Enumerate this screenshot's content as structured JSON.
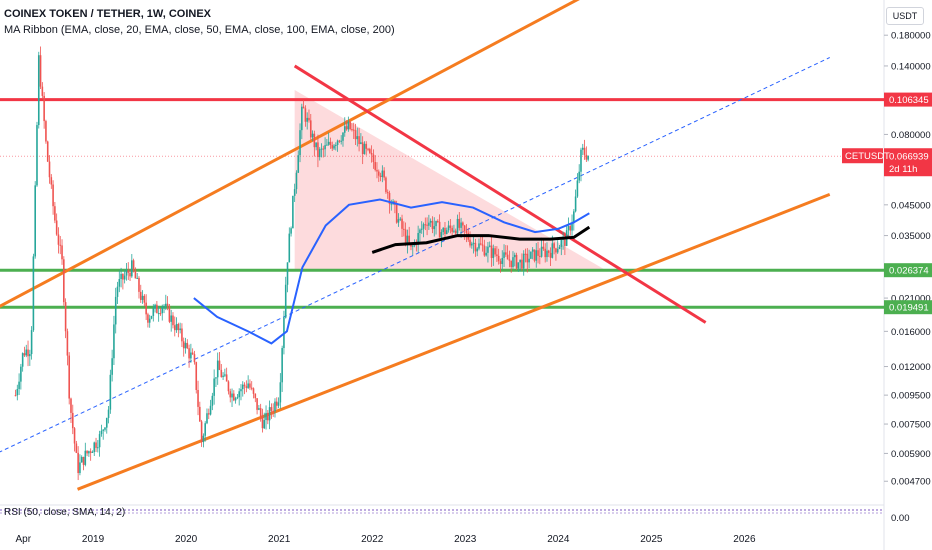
{
  "header": {
    "title": "COINEX TOKEN / TETHER, 1W, COINEX",
    "subtitle": "MA Ribbon (EMA, close, 20, EMA, close, 50, EMA, close, 100, EMA, close, 200)",
    "currency": "USDT"
  },
  "chart_data": {
    "type": "candlestick",
    "symbol": "CETUSDT",
    "timeframe": "1W",
    "scale": "log",
    "ylim": [
      0.0042,
      0.24
    ],
    "y_ticks": [
      "0.180000",
      "0.140000",
      "0.080000",
      "0.045000",
      "0.035000",
      "0.021000",
      "0.016000",
      "0.012000",
      "0.009500",
      "0.007500",
      "0.005900",
      "0.004700"
    ],
    "x_ticks": [
      "Apr",
      "2019",
      "2020",
      "2021",
      "2022",
      "2023",
      "2024",
      "2025",
      "2026"
    ],
    "last_price": {
      "label": "CETUSDT",
      "value": "0.066939",
      "countdown": "2d 11h",
      "color": "#f23645"
    },
    "price_path": [
      [
        "2018-03",
        0.0095
      ],
      [
        "2018-04",
        0.0135
      ],
      [
        "2018-05",
        0.014
      ],
      [
        "2018-06",
        0.148
      ],
      [
        "2018-07",
        0.07
      ],
      [
        "2018-08",
        0.041
      ],
      [
        "2018-09",
        0.028
      ],
      [
        "2018-10",
        0.009
      ],
      [
        "2018-11",
        0.0052
      ],
      [
        "2018-12",
        0.0058
      ],
      [
        "2019-02",
        0.0068
      ],
      [
        "2019-03",
        0.0085
      ],
      [
        "2019-04",
        0.023
      ],
      [
        "2019-06",
        0.027
      ],
      [
        "2019-08",
        0.018
      ],
      [
        "2019-10",
        0.02
      ],
      [
        "2019-12",
        0.016
      ],
      [
        "2020-01",
        0.014
      ],
      [
        "2020-02",
        0.0125
      ],
      [
        "2020-03",
        0.0065
      ],
      [
        "2020-05",
        0.012
      ],
      [
        "2020-07",
        0.0095
      ],
      [
        "2020-09",
        0.0105
      ],
      [
        "2020-11",
        0.0075
      ],
      [
        "2021-01",
        0.0095
      ],
      [
        "2021-02",
        0.028
      ],
      [
        "2021-04",
        0.1
      ],
      [
        "2021-06",
        0.068
      ],
      [
        "2021-08",
        0.075
      ],
      [
        "2021-10",
        0.085
      ],
      [
        "2021-12",
        0.07
      ],
      [
        "2022-02",
        0.06
      ],
      [
        "2022-04",
        0.042
      ],
      [
        "2022-06",
        0.031
      ],
      [
        "2022-08",
        0.04
      ],
      [
        "2022-10",
        0.036
      ],
      [
        "2022-12",
        0.038
      ],
      [
        "2023-02",
        0.033
      ],
      [
        "2023-04",
        0.031
      ],
      [
        "2023-06",
        0.029
      ],
      [
        "2023-08",
        0.028
      ],
      [
        "2023-10",
        0.03
      ],
      [
        "2023-12",
        0.031
      ],
      [
        "2024-02",
        0.034
      ],
      [
        "2024-03",
        0.042
      ],
      [
        "2024-04",
        0.07
      ],
      [
        "2024-05",
        0.066939
      ]
    ],
    "horizontal_levels": [
      {
        "value": "0.106345",
        "color": "#f23645"
      },
      {
        "value": "0.026374",
        "color": "#4caf50"
      },
      {
        "value": "0.019491",
        "color": "#4caf50"
      }
    ],
    "indicators": {
      "ema_blue": [
        [
          "2020-02",
          0.021
        ],
        [
          "2020-05",
          0.018
        ],
        [
          "2020-09",
          0.016
        ],
        [
          "2020-12",
          0.0145
        ],
        [
          "2021-02",
          0.016
        ],
        [
          "2021-04",
          0.027
        ],
        [
          "2021-07",
          0.038
        ],
        [
          "2021-10",
          0.045
        ],
        [
          "2022-02",
          0.047
        ],
        [
          "2022-06",
          0.044
        ],
        [
          "2022-10",
          0.046
        ],
        [
          "2023-02",
          0.044
        ],
        [
          "2023-06",
          0.039
        ],
        [
          "2023-10",
          0.036
        ],
        [
          "2024-01",
          0.037
        ],
        [
          "2024-03",
          0.039
        ],
        [
          "2024-05",
          0.042
        ]
      ],
      "ema_black": [
        [
          "2022-01",
          0.0305
        ],
        [
          "2022-04",
          0.0325
        ],
        [
          "2022-08",
          0.033
        ],
        [
          "2022-12",
          0.035
        ],
        [
          "2023-04",
          0.035
        ],
        [
          "2023-08",
          0.034
        ],
        [
          "2023-12",
          0.034
        ],
        [
          "2024-03",
          0.0345
        ],
        [
          "2024-05",
          0.0375
        ]
      ]
    },
    "trendlines": [
      {
        "color": "#f57c20",
        "from": [
          "2017-12",
          0.019
        ],
        "to": [
          "2024-10",
          0.3
        ]
      },
      {
        "color": "#f57c20",
        "from": [
          "2018-11",
          0.0044
        ],
        "to": [
          "2026-12",
          0.049
        ]
      },
      {
        "color": "#f23645",
        "from": [
          "2021-03",
          0.14
        ],
        "to": [
          "2025-08",
          0.0172
        ]
      },
      {
        "color": "#2962ff",
        "style": "dashed",
        "from": [
          "2017-12",
          0.0058
        ],
        "to": [
          "2026-12",
          0.15
        ]
      }
    ],
    "oscillator": {
      "label": "RSI (50, close, SMA, 14, 2)",
      "value": "0.00"
    }
  }
}
